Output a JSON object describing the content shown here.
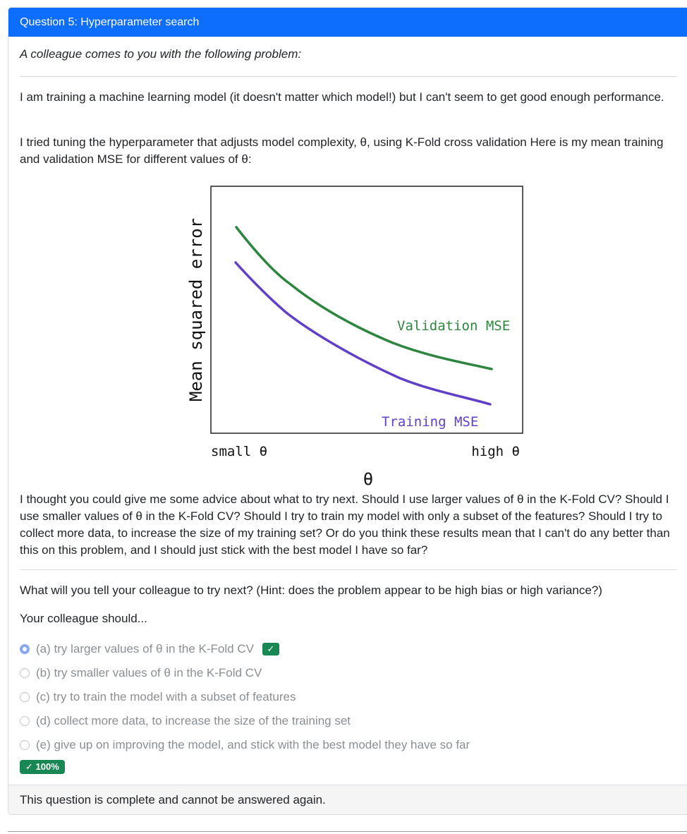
{
  "header": {
    "title": "Question 5: Hyperparameter search"
  },
  "intro": "A colleague comes to you with the following problem:",
  "paragraphs": {
    "p1": "I am training a machine learning model (it doesn't matter which model!) but I can't seem to get good enough performance.",
    "p2": "I tried tuning the hyperparameter that adjusts model complexity, θ, using K-Fold cross validation Here is my mean training and validation MSE for different values of θ:",
    "p3": "I thought you could give me some advice about what to try next. Should I use larger values of θ in the K-Fold CV? Should I use smaller values of θ in the K-Fold CV? Should I try to train my model with only a subset of the features? Should I try to collect more data, to increase the size of my training set? Or do you think these results mean that I can't do any better than this on this problem, and I should just stick with the best model I have so far?",
    "question": "What will you tell your colleague to try next? (Hint: does the problem appear to be high bias or high variance?)",
    "prompt": "Your colleague should..."
  },
  "chart": {
    "ylabel": "Mean squared error",
    "xlabel": "θ",
    "x_left_label": "small θ",
    "x_right_label": "high θ",
    "validation_label": "Validation MSE",
    "training_label": "Training MSE",
    "validation_color": "#2e8540",
    "training_color": "#6040c8"
  },
  "options": [
    {
      "label": "(a) try larger values of θ in the K-Fold CV",
      "selected": true,
      "correct": true
    },
    {
      "label": "(b) try smaller values of θ in the K-Fold CV",
      "selected": false
    },
    {
      "label": "(c) try to train the model with a subset of features",
      "selected": false
    },
    {
      "label": "(d) collect more data, to increase the size of the training set",
      "selected": false
    },
    {
      "label": "(e) give up on improving the model, and stick with the best model they have so far",
      "selected": false
    }
  ],
  "check_mark": "✓",
  "score": "✓ 100%",
  "footer": "This question is complete and cannot be answered again.",
  "colors": {
    "header": "#0d6efd",
    "success": "#198754"
  }
}
